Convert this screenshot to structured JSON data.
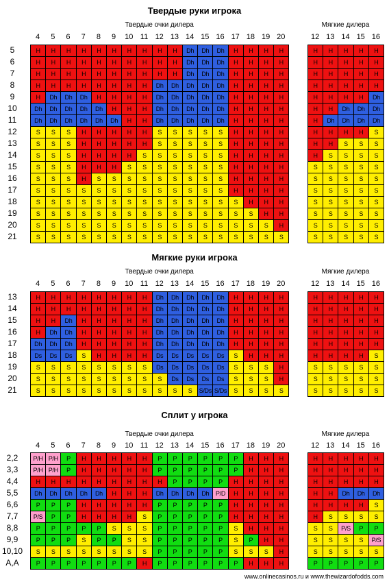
{
  "sections": [
    {
      "title": "Твердые руки игрока",
      "hard_label": "Твердые очки дилера",
      "soft_label": "Мягкие дилера",
      "hard_cols": [
        "4",
        "5",
        "6",
        "7",
        "8",
        "9",
        "10",
        "11",
        "12",
        "13",
        "14",
        "15",
        "16",
        "17",
        "18",
        "19",
        "20"
      ],
      "soft_cols": [
        "12",
        "13",
        "14",
        "15",
        "16"
      ],
      "rows": [
        {
          "label": "5",
          "hard": [
            "H",
            "H",
            "H",
            "H",
            "H",
            "H",
            "H",
            "H",
            "H",
            "H",
            "Dh",
            "Dh",
            "Dh",
            "H",
            "H",
            "H",
            "H"
          ],
          "soft": [
            "H",
            "H",
            "H",
            "H",
            "H"
          ]
        },
        {
          "label": "6",
          "hard": [
            "H",
            "H",
            "H",
            "H",
            "H",
            "H",
            "H",
            "H",
            "H",
            "H",
            "Dh",
            "Dh",
            "Dh",
            "H",
            "H",
            "H",
            "H"
          ],
          "soft": [
            "H",
            "H",
            "H",
            "H",
            "H"
          ]
        },
        {
          "label": "7",
          "hard": [
            "H",
            "H",
            "H",
            "H",
            "H",
            "H",
            "H",
            "H",
            "H",
            "H",
            "Dh",
            "Dh",
            "Dh",
            "H",
            "H",
            "H",
            "H"
          ],
          "soft": [
            "H",
            "H",
            "H",
            "H",
            "H"
          ]
        },
        {
          "label": "8",
          "hard": [
            "H",
            "H",
            "H",
            "H",
            "H",
            "H",
            "H",
            "H",
            "Dh",
            "Dh",
            "Dh",
            "Dh",
            "Dh",
            "H",
            "H",
            "H",
            "H"
          ],
          "soft": [
            "H",
            "H",
            "H",
            "H",
            "H"
          ]
        },
        {
          "label": "9",
          "hard": [
            "H",
            "Dh",
            "Dh",
            "Dh",
            "H",
            "H",
            "H",
            "H",
            "Dh",
            "Dh",
            "Dh",
            "Dh",
            "Dh",
            "H",
            "H",
            "H",
            "H"
          ],
          "soft": [
            "H",
            "H",
            "H",
            "H",
            "Dh"
          ]
        },
        {
          "label": "10",
          "hard": [
            "Dh",
            "Dh",
            "Dh",
            "Dh",
            "Dh",
            "H",
            "H",
            "H",
            "Dh",
            "Dh",
            "Dh",
            "Dh",
            "Dh",
            "H",
            "H",
            "H",
            "H"
          ],
          "soft": [
            "H",
            "H",
            "Dh",
            "Dh",
            "Dh"
          ]
        },
        {
          "label": "11",
          "hard": [
            "Dh",
            "Dh",
            "Dh",
            "Dh",
            "Dh",
            "Dh",
            "H",
            "H",
            "Dh",
            "Dh",
            "Dh",
            "Dh",
            "Dh",
            "H",
            "H",
            "H",
            "H"
          ],
          "soft": [
            "H",
            "Dh",
            "Dh",
            "Dh",
            "Dh"
          ]
        },
        {
          "label": "12",
          "hard": [
            "S",
            "S",
            "S",
            "H",
            "H",
            "H",
            "H",
            "H",
            "S",
            "S",
            "S",
            "S",
            "S",
            "H",
            "H",
            "H",
            "H"
          ],
          "soft": [
            "H",
            "H",
            "H",
            "H",
            "S"
          ]
        },
        {
          "label": "13",
          "hard": [
            "S",
            "S",
            "S",
            "H",
            "H",
            "H",
            "H",
            "H",
            "S",
            "S",
            "S",
            "S",
            "S",
            "H",
            "H",
            "H",
            "H"
          ],
          "soft": [
            "H",
            "H",
            "S",
            "S",
            "S"
          ]
        },
        {
          "label": "14",
          "hard": [
            "S",
            "S",
            "S",
            "H",
            "H",
            "H",
            "H",
            "S",
            "S",
            "S",
            "S",
            "S",
            "S",
            "H",
            "H",
            "H",
            "H"
          ],
          "soft": [
            "H",
            "S",
            "S",
            "S",
            "S"
          ]
        },
        {
          "label": "15",
          "hard": [
            "S",
            "S",
            "S",
            "H",
            "H",
            "H",
            "S",
            "S",
            "S",
            "S",
            "S",
            "S",
            "S",
            "H",
            "H",
            "H",
            "H"
          ],
          "soft": [
            "S",
            "S",
            "S",
            "S",
            "S"
          ]
        },
        {
          "label": "16",
          "hard": [
            "S",
            "S",
            "S",
            "H",
            "S",
            "S",
            "S",
            "S",
            "S",
            "S",
            "S",
            "S",
            "S",
            "H",
            "H",
            "H",
            "H"
          ],
          "soft": [
            "S",
            "S",
            "S",
            "S",
            "S"
          ]
        },
        {
          "label": "17",
          "hard": [
            "S",
            "S",
            "S",
            "S",
            "S",
            "S",
            "S",
            "S",
            "S",
            "S",
            "S",
            "S",
            "S",
            "H",
            "H",
            "H",
            "H"
          ],
          "soft": [
            "S",
            "S",
            "S",
            "S",
            "S"
          ]
        },
        {
          "label": "18",
          "hard": [
            "S",
            "S",
            "S",
            "S",
            "S",
            "S",
            "S",
            "S",
            "S",
            "S",
            "S",
            "S",
            "S",
            "S",
            "H",
            "H",
            "H"
          ],
          "soft": [
            "S",
            "S",
            "S",
            "S",
            "S"
          ]
        },
        {
          "label": "19",
          "hard": [
            "S",
            "S",
            "S",
            "S",
            "S",
            "S",
            "S",
            "S",
            "S",
            "S",
            "S",
            "S",
            "S",
            "S",
            "S",
            "H",
            "H"
          ],
          "soft": [
            "S",
            "S",
            "S",
            "S",
            "S"
          ]
        },
        {
          "label": "20",
          "hard": [
            "S",
            "S",
            "S",
            "S",
            "S",
            "S",
            "S",
            "S",
            "S",
            "S",
            "S",
            "S",
            "S",
            "S",
            "S",
            "S",
            "H"
          ],
          "soft": [
            "S",
            "S",
            "S",
            "S",
            "S"
          ]
        },
        {
          "label": "21",
          "hard": [
            "S",
            "S",
            "S",
            "S",
            "S",
            "S",
            "S",
            "S",
            "S",
            "S",
            "S",
            "S",
            "S",
            "S",
            "S",
            "S",
            "S"
          ],
          "soft": [
            "S",
            "S",
            "S",
            "S",
            "S"
          ]
        }
      ]
    },
    {
      "title": "Мягкие руки игрока",
      "hard_label": "Твердые очки дилера",
      "soft_label": "Мягкие дилера",
      "hard_cols": [
        "4",
        "5",
        "6",
        "7",
        "8",
        "9",
        "10",
        "11",
        "12",
        "13",
        "14",
        "15",
        "16",
        "17",
        "18",
        "19",
        "20"
      ],
      "soft_cols": [
        "12",
        "13",
        "14",
        "15",
        "16"
      ],
      "rows": [
        {
          "label": "13",
          "hard": [
            "H",
            "H",
            "H",
            "H",
            "H",
            "H",
            "H",
            "H",
            "Dh",
            "Dh",
            "Dh",
            "Dh",
            "Dh",
            "H",
            "H",
            "H",
            "H"
          ],
          "soft": [
            "H",
            "H",
            "H",
            "H",
            "H"
          ]
        },
        {
          "label": "14",
          "hard": [
            "H",
            "H",
            "H",
            "H",
            "H",
            "H",
            "H",
            "H",
            "Dh",
            "Dh",
            "Dh",
            "Dh",
            "Dh",
            "H",
            "H",
            "H",
            "H"
          ],
          "soft": [
            "H",
            "H",
            "H",
            "H",
            "H"
          ]
        },
        {
          "label": "15",
          "hard": [
            "H",
            "H",
            "Dh",
            "H",
            "H",
            "H",
            "H",
            "H",
            "Dh",
            "Dh",
            "Dh",
            "Dh",
            "Dh",
            "H",
            "H",
            "H",
            "H"
          ],
          "soft": [
            "H",
            "H",
            "H",
            "H",
            "H"
          ]
        },
        {
          "label": "16",
          "hard": [
            "H",
            "Dh",
            "Dh",
            "H",
            "H",
            "H",
            "H",
            "H",
            "Dh",
            "Dh",
            "Dh",
            "Dh",
            "Dh",
            "H",
            "H",
            "H",
            "H"
          ],
          "soft": [
            "H",
            "H",
            "H",
            "H",
            "H"
          ]
        },
        {
          "label": "17",
          "hard": [
            "Dh",
            "Dh",
            "Dh",
            "H",
            "H",
            "H",
            "H",
            "H",
            "Dh",
            "Dh",
            "Dh",
            "Dh",
            "Dh",
            "H",
            "H",
            "H",
            "H"
          ],
          "soft": [
            "H",
            "H",
            "H",
            "H",
            "H"
          ]
        },
        {
          "label": "18",
          "hard": [
            "Ds",
            "Ds",
            "Ds",
            "S",
            "H",
            "H",
            "H",
            "H",
            "Ds",
            "Ds",
            "Ds",
            "Ds",
            "Ds",
            "S",
            "H",
            "H",
            "H"
          ],
          "soft": [
            "H",
            "H",
            "H",
            "H",
            "S"
          ]
        },
        {
          "label": "19",
          "hard": [
            "S",
            "S",
            "S",
            "S",
            "S",
            "S",
            "S",
            "S",
            "Ds",
            "Ds",
            "Ds",
            "Ds",
            "Ds",
            "S",
            "S",
            "S",
            "H"
          ],
          "soft": [
            "S",
            "S",
            "S",
            "S",
            "S"
          ]
        },
        {
          "label": "20",
          "hard": [
            "S",
            "S",
            "S",
            "S",
            "S",
            "S",
            "S",
            "S",
            "S",
            "Ds",
            "Ds",
            "Ds",
            "Ds",
            "S",
            "S",
            "S",
            "H"
          ],
          "soft": [
            "S",
            "S",
            "S",
            "S",
            "S"
          ]
        },
        {
          "label": "21",
          "hard": [
            "S",
            "S",
            "S",
            "S",
            "S",
            "S",
            "S",
            "S",
            "S",
            "S",
            "S",
            "S/Ds",
            "S/Ds",
            "S",
            "S",
            "S",
            "S"
          ],
          "soft": [
            "S",
            "S",
            "S",
            "S",
            "S"
          ]
        }
      ]
    },
    {
      "title": "Сплит у игрока",
      "hard_label": "Твердые очки дилера",
      "soft_label": "Мягкие дилера",
      "hard_cols": [
        "4",
        "5",
        "6",
        "7",
        "8",
        "9",
        "10",
        "11",
        "12",
        "13",
        "14",
        "15",
        "16",
        "17",
        "18",
        "19",
        "20"
      ],
      "soft_cols": [
        "12",
        "13",
        "14",
        "15",
        "16"
      ],
      "rows": [
        {
          "label": "2,2",
          "hard": [
            "P/H",
            "P/H",
            "P",
            "H",
            "H",
            "H",
            "H",
            "H",
            "P",
            "P",
            "P",
            "P",
            "P",
            "P",
            "H",
            "H",
            "H"
          ],
          "soft": [
            "H",
            "H",
            "H",
            "H",
            "H"
          ]
        },
        {
          "label": "3,3",
          "hard": [
            "P/H",
            "P/H",
            "P",
            "H",
            "H",
            "H",
            "H",
            "H",
            "P",
            "P",
            "P",
            "P",
            "P",
            "P",
            "H",
            "H",
            "H"
          ],
          "soft": [
            "H",
            "H",
            "H",
            "H",
            "H"
          ]
        },
        {
          "label": "4,4",
          "hard": [
            "H",
            "H",
            "H",
            "H",
            "H",
            "H",
            "H",
            "H",
            "H",
            "P",
            "P",
            "P",
            "P",
            "H",
            "H",
            "H",
            "H"
          ],
          "soft": [
            "H",
            "H",
            "H",
            "H",
            "H"
          ]
        },
        {
          "label": "5,5",
          "hard": [
            "Dh",
            "Dh",
            "Dh",
            "Dh",
            "Dh",
            "H",
            "H",
            "H",
            "Dh",
            "Dh",
            "Dh",
            "Dh",
            "P/D",
            "H",
            "H",
            "H",
            "H"
          ],
          "soft": [
            "H",
            "H",
            "Dh",
            "Dh",
            "Dh"
          ]
        },
        {
          "label": "6,6",
          "hard": [
            "P",
            "P",
            "P",
            "H",
            "H",
            "H",
            "H",
            "H",
            "P",
            "P",
            "P",
            "P",
            "P",
            "H",
            "H",
            "H",
            "H"
          ],
          "soft": [
            "H",
            "H",
            "H",
            "H",
            "S"
          ]
        },
        {
          "label": "7,7",
          "hard": [
            "P/S",
            "P",
            "P",
            "H",
            "H",
            "H",
            "H",
            "S",
            "P",
            "P",
            "P",
            "P",
            "P",
            "H",
            "H",
            "H",
            "H"
          ],
          "soft": [
            "H",
            "S",
            "S",
            "S",
            "S"
          ]
        },
        {
          "label": "8,8",
          "hard": [
            "P",
            "P",
            "P",
            "P",
            "P",
            "S",
            "S",
            "S",
            "P",
            "P",
            "P",
            "P",
            "P",
            "S",
            "H",
            "H",
            "H"
          ],
          "soft": [
            "S",
            "S",
            "P/S",
            "P",
            "P"
          ]
        },
        {
          "label": "9,9",
          "hard": [
            "P",
            "P",
            "P",
            "S",
            "P",
            "P",
            "S",
            "S",
            "P",
            "P",
            "P",
            "P",
            "P",
            "S",
            "P",
            "H",
            "H"
          ],
          "soft": [
            "S",
            "S",
            "S",
            "S",
            "P/S"
          ]
        },
        {
          "label": "10,10",
          "hard": [
            "S",
            "S",
            "S",
            "S",
            "S",
            "S",
            "S",
            "S",
            "P",
            "P",
            "P",
            "P",
            "P",
            "S",
            "S",
            "S",
            "H"
          ],
          "soft": [
            "S",
            "S",
            "S",
            "S",
            "S"
          ]
        },
        {
          "label": "A,A",
          "hard": [
            "P",
            "P",
            "P",
            "P",
            "P",
            "P",
            "P",
            "H",
            "P",
            "P",
            "P",
            "P",
            "P",
            "P",
            "H",
            "H",
            "H"
          ],
          "soft": [
            "P",
            "P",
            "P",
            "P",
            "P"
          ]
        }
      ]
    }
  ],
  "colors": {
    "H": "#ee1111",
    "S": "#ffee00",
    "D": "#2f5fe0",
    "P": "#11dd11",
    "K": "#ffa0cc"
  },
  "footer": "www.onlinecasinos.ru и www.thewizardofodds.com"
}
